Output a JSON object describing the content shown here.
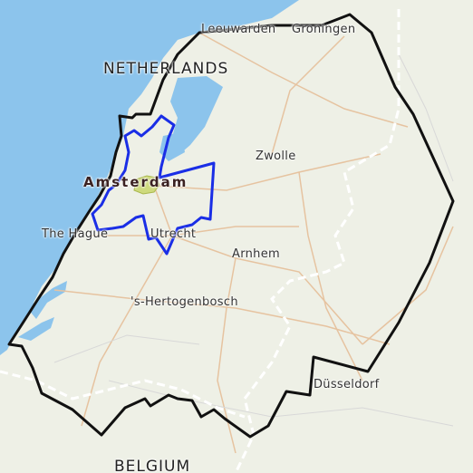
{
  "map": {
    "labels": {
      "leeuwarden": "Leeuwarden",
      "groningen": "Groningen",
      "netherlands": "NETHERLANDS",
      "zwolle": "Zwolle",
      "amsterdam": "Amsterdam",
      "the_hague": "The Hague",
      "utrecht": "Utrecht",
      "arnhem": "Arnhem",
      "hertogenbosch": "'s-Hertogenbosch",
      "dusseldorf": "Düsseldorf",
      "belgium": "BELGIUM"
    },
    "colors": {
      "sea": "#8cc4ec",
      "land": "#eef0e6",
      "outer_boundary": "#111111",
      "inner_boundary": "#1a2ee6",
      "amsterdam_highlight": "#c8d66a",
      "border_dashes": "#ffffff",
      "roads": "#e8c9a8"
    }
  }
}
